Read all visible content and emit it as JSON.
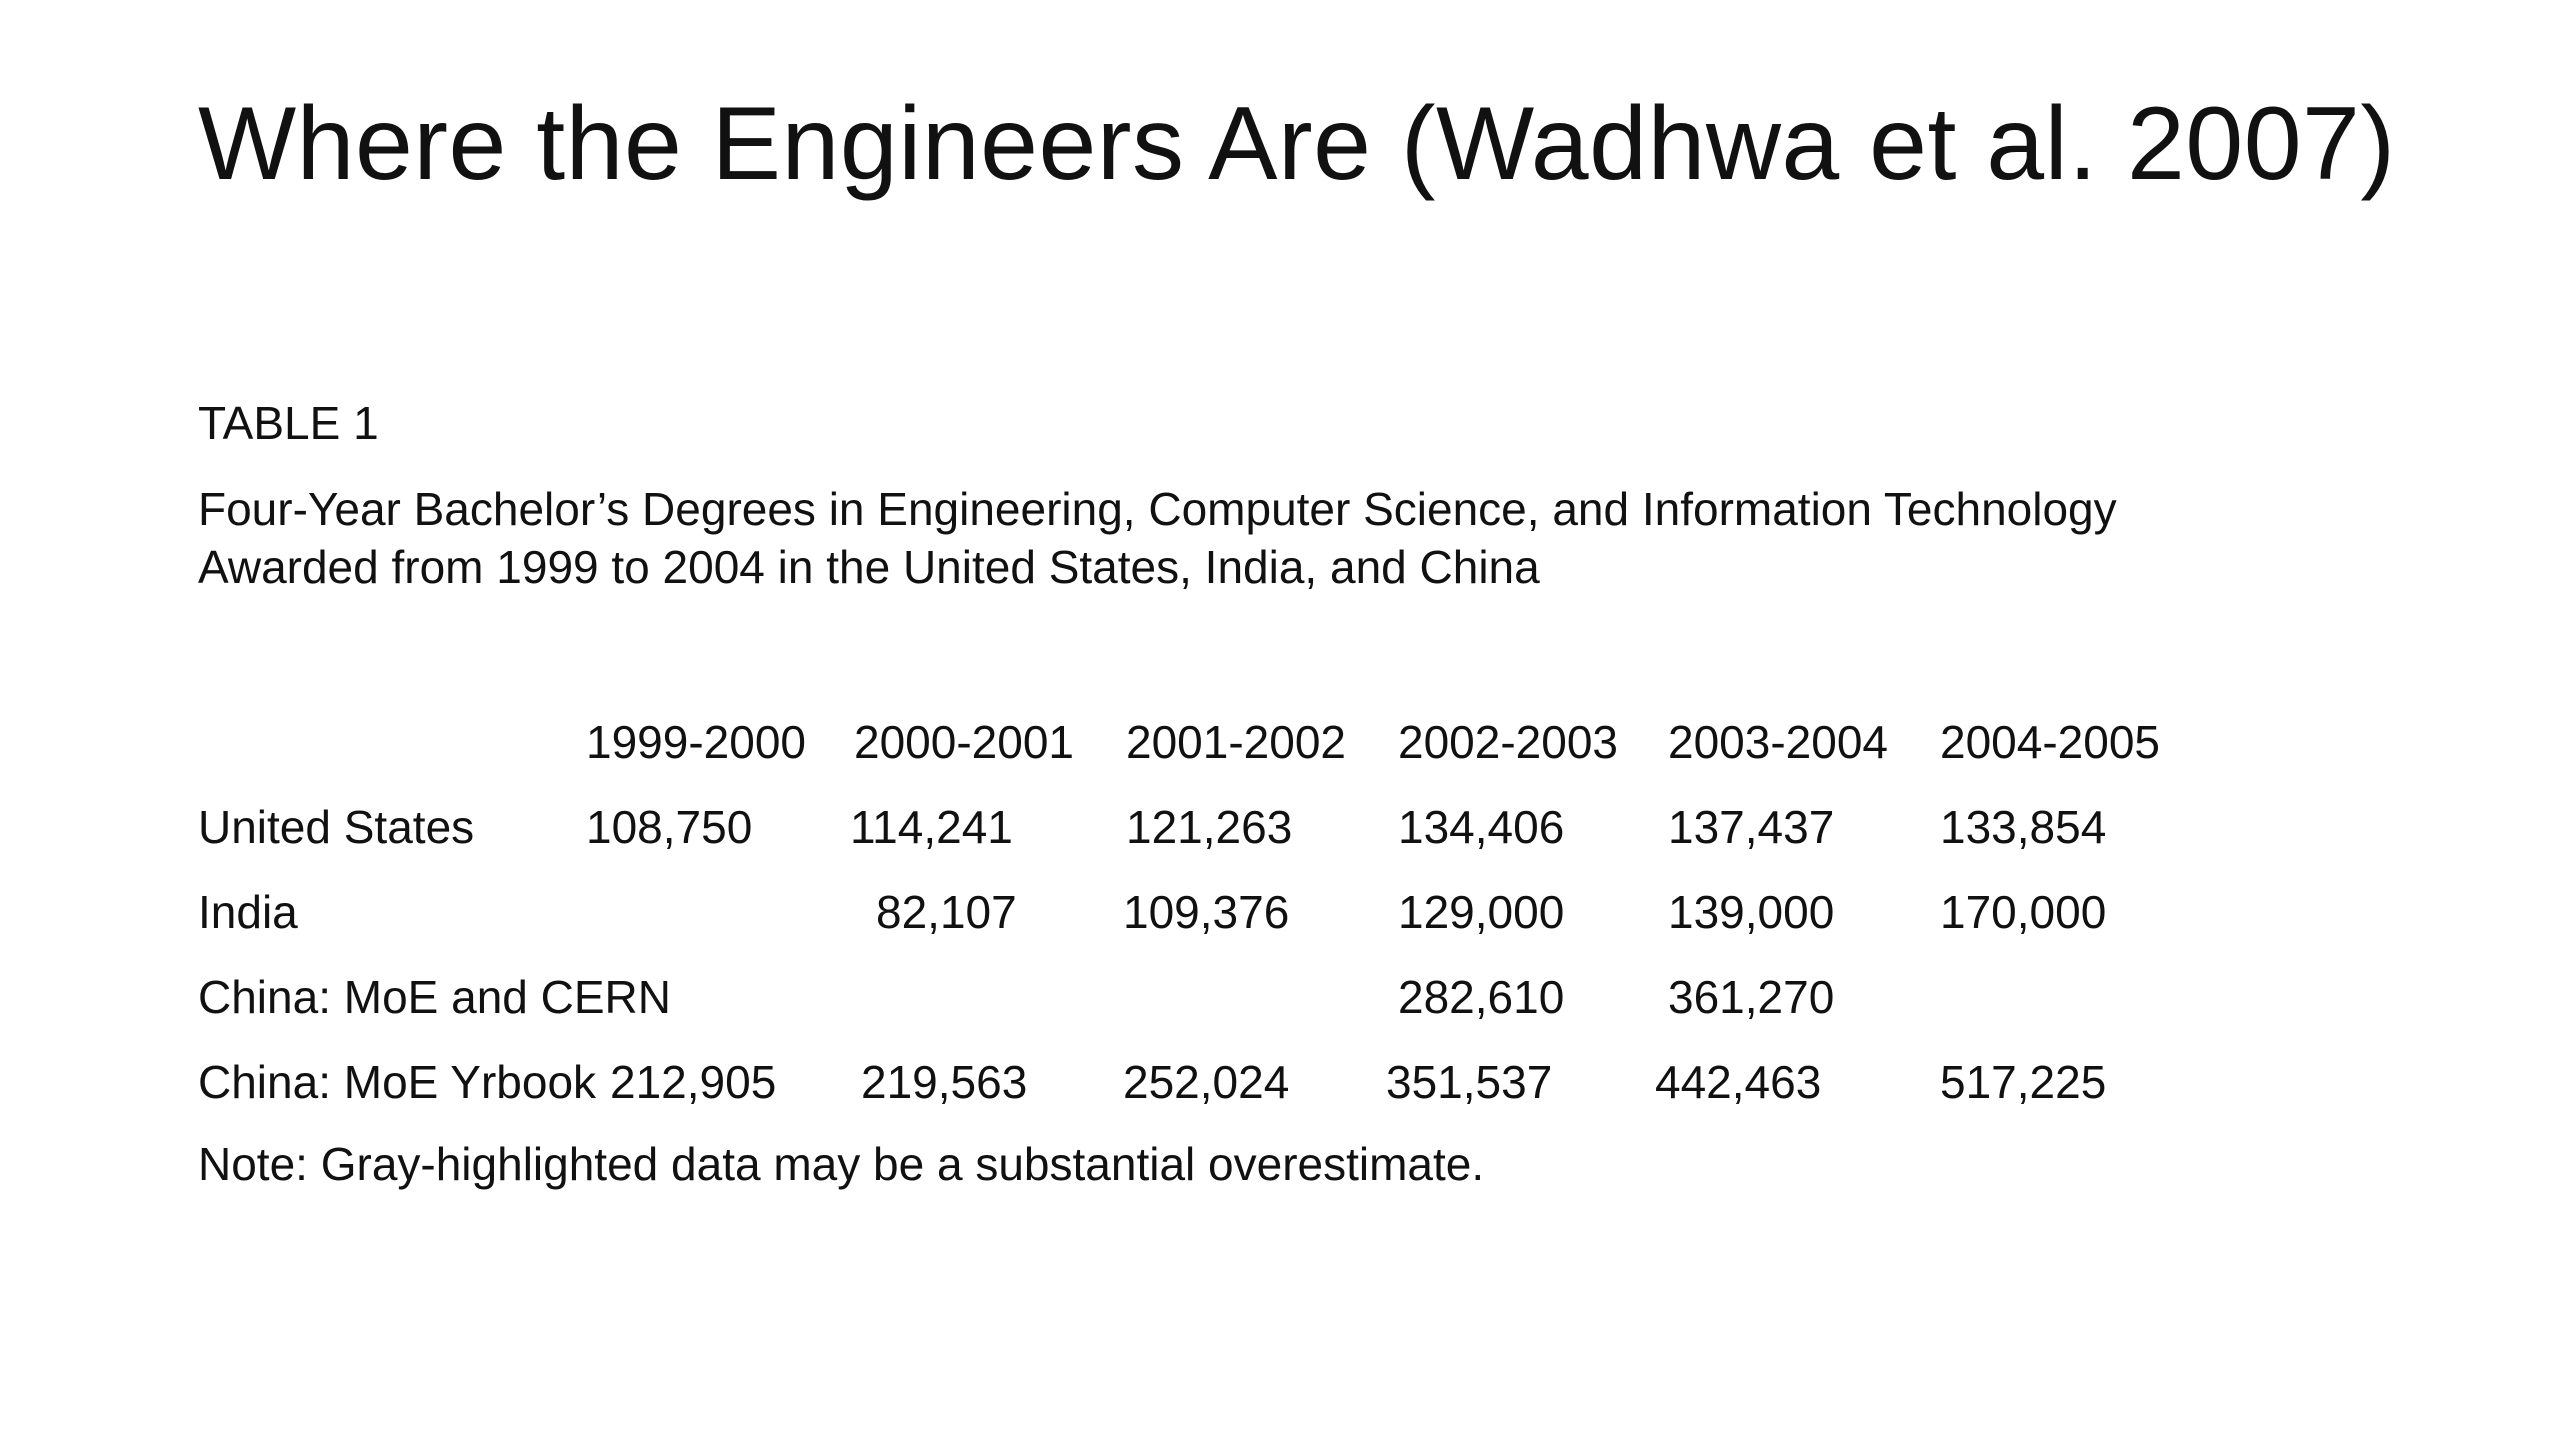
{
  "slide": {
    "title": "Where the Engineers Are (Wadhwa et al. 2007)",
    "table_label": "TABLE 1",
    "caption_line1": "Four-Year Bachelor’s Degrees in Engineering, Computer Science, and Information Technology",
    "caption_line2": "Awarded from 1999 to 2004 in the United States, India, and China",
    "note": "Note: Gray-highlighted data may be a substantial overestimate."
  },
  "table": {
    "columns": [
      "1999-2000",
      "2000-2001",
      "2001-2002",
      "2002-2003",
      "2003-2004",
      "2004-2005"
    ],
    "rows": [
      {
        "label": "United States",
        "values": [
          "108,750",
          "114,241",
          "121,263",
          "134,406",
          "137,437",
          "133,854"
        ]
      },
      {
        "label": "India",
        "values": [
          "",
          "82,107",
          "109,376",
          "129,000",
          "139,000",
          "170,000"
        ]
      },
      {
        "label": "China: MoE and CERN",
        "values": [
          "",
          "",
          "",
          "282,610",
          "361,270",
          ""
        ]
      },
      {
        "label": "China: MoE Yrbook",
        "values": [
          "212,905",
          "219,563",
          "252,024",
          "351,537",
          "442,463",
          "517,225"
        ]
      }
    ]
  }
}
